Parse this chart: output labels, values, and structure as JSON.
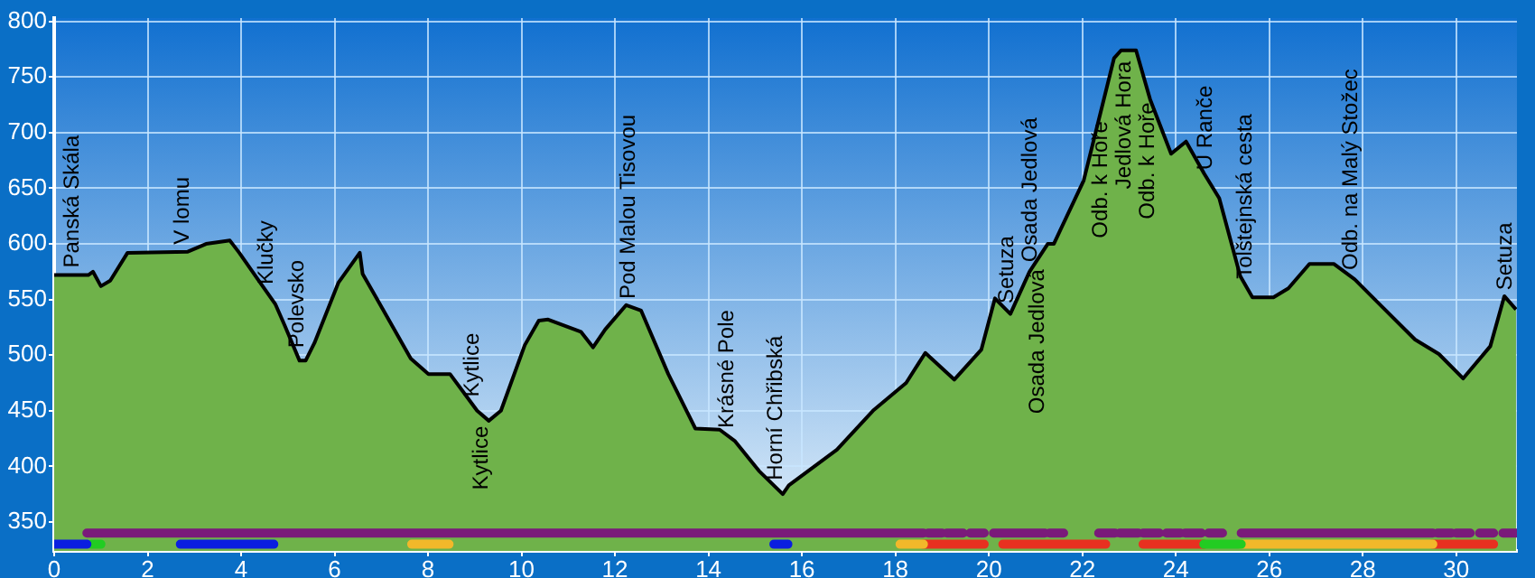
{
  "chart_data": {
    "type": "area",
    "x": [
      0,
      0.73,
      0.83,
      1.0,
      1.2,
      1.57,
      2.86,
      3.25,
      3.76,
      3.96,
      4.41,
      4.73,
      4.93,
      5.25,
      5.38,
      5.57,
      6.08,
      6.54,
      6.6,
      6.86,
      7.63,
      8.01,
      8.47,
      9.05,
      9.3,
      9.56,
      10.07,
      10.37,
      10.57,
      11.27,
      11.53,
      11.79,
      12.24,
      12.56,
      13.14,
      13.72,
      14.24,
      14.56,
      15.08,
      15.59,
      15.72,
      16.75,
      17.52,
      18.23,
      18.64,
      19.26,
      19.84,
      20.13,
      20.46,
      20.87,
      21.26,
      21.39,
      22.03,
      22.68,
      22.83,
      23.15,
      23.45,
      23.9,
      24.22,
      24.61,
      24.93,
      25.38,
      25.64,
      26.09,
      26.41,
      26.86,
      27.38,
      27.83,
      29.12,
      29.63,
      30.15,
      30.73,
      31.03,
      31.28
    ],
    "series": [
      {
        "color": "#6fb24a",
        "values": [
          572,
          572,
          575,
          562,
          567,
          592,
          593,
          600,
          603,
          592,
          565,
          546,
          527,
          495,
          495,
          511,
          565,
          592,
          573,
          554,
          497,
          483,
          483,
          450,
          441,
          450,
          509,
          531,
          532,
          521,
          507,
          523,
          545,
          540,
          483,
          434,
          433,
          423,
          396,
          375,
          383,
          415,
          450,
          475,
          502,
          478,
          505,
          551,
          537,
          575,
          600,
          600,
          657,
          767,
          774,
          774,
          730,
          681,
          692,
          663,
          641,
          571,
          552,
          552,
          560,
          582,
          582,
          568,
          514,
          501,
          479,
          508,
          553,
          541
        ]
      },
      {
        "type": "line",
        "color": "#7a1a7a",
        "x": [
          0.7,
          18.6,
          18.65,
          18.7,
          19.0,
          19.05,
          19.1,
          19.45,
          19.5,
          19.6,
          19.9,
          20.0,
          20.1,
          21.2,
          21.25,
          21.3,
          21.6,
          22.0,
          22.35,
          22.7,
          22.75,
          22.8,
          23.2,
          23.25,
          23.3,
          23.65,
          23.7,
          23.8,
          24.1,
          24.15,
          24.2,
          24.55,
          24.6,
          24.7,
          25.0,
          25.2,
          25.4,
          29.5,
          29.55,
          29.6,
          29.9,
          29.95,
          30.0,
          30.3,
          30.4,
          30.5,
          30.8,
          30.9,
          31.0,
          31.3
        ],
        "values": [
          340,
          340,
          null,
          340,
          340,
          null,
          340,
          340,
          null,
          340,
          340,
          null,
          340,
          340,
          null,
          340,
          340,
          null,
          340,
          340,
          null,
          340,
          340,
          null,
          340,
          340,
          null,
          340,
          340,
          null,
          340,
          340,
          null,
          340,
          340,
          null,
          340,
          340,
          null,
          340,
          340,
          null,
          340,
          340,
          null,
          340,
          340,
          null,
          340,
          340
        ]
      },
      {
        "type": "line",
        "color": "#0a1ee0",
        "x": [
          0,
          0.7,
          1.5,
          2.7,
          4.7,
          10,
          15.4,
          15.7
        ],
        "values": [
          330,
          330,
          null,
          330,
          330,
          null,
          330,
          330
        ]
      },
      {
        "type": "line",
        "color": "#22cc22",
        "x": [
          0.8,
          1.0,
          12,
          24.6,
          25.4
        ],
        "values": [
          330,
          330,
          null,
          330,
          330
        ]
      },
      {
        "type": "line",
        "color": "#f2b82a",
        "x": [
          7.65,
          8.45,
          13,
          18.1,
          18.6,
          22,
          25.4,
          29.5
        ],
        "values": [
          330,
          330,
          null,
          330,
          330,
          null,
          330,
          330
        ]
      },
      {
        "type": "line",
        "color": "#e83020",
        "x": [
          18.6,
          19.9,
          20.1,
          20.3,
          22.5,
          22.9,
          23.3,
          24.6,
          27,
          29.5,
          30.8
        ],
        "values": [
          330,
          330,
          null,
          330,
          330,
          null,
          330,
          330,
          null,
          330,
          330
        ]
      }
    ],
    "xlim": [
      0,
      31.3
    ],
    "xticks": [
      0,
      2,
      4,
      6,
      8,
      10,
      12,
      14,
      16,
      18,
      20,
      22,
      24,
      26,
      28,
      30
    ],
    "ylim": [
      324,
      803
    ],
    "yticks": [
      350,
      400,
      450,
      500,
      550,
      600,
      650,
      700,
      750,
      800
    ],
    "grid": true,
    "legend": false,
    "marker": "none",
    "line_style": "solid",
    "annotations": [
      {
        "text": "Panská Skála",
        "x": 0.4,
        "y": 572
      },
      {
        "text": "V lomu",
        "x": 2.75,
        "y": 593
      },
      {
        "text": "Klučky",
        "x": 4.55,
        "y": 557
      },
      {
        "text": "Polevsko",
        "x": 5.2,
        "y": 500
      },
      {
        "text": "Kytlice",
        "x": 8.95,
        "y": 456
      },
      {
        "text": "Kytlice",
        "x": 9.15,
        "y": 446
      },
      {
        "text": "Pod Malou Tisovou",
        "x": 12.3,
        "y": 544
      },
      {
        "text": "Krásné Pole",
        "x": 14.4,
        "y": 428
      },
      {
        "text": "Horní Chřibská",
        "x": 15.45,
        "y": 381
      },
      {
        "text": "Setuza",
        "x": 20.4,
        "y": 540
      },
      {
        "text": "Osada Jedlová",
        "x": 20.9,
        "y": 577
      },
      {
        "text": "Osada Jedlová",
        "x": 21.05,
        "y": 587
      },
      {
        "text": "Odb. k Hoře",
        "x": 22.4,
        "y": 720
      },
      {
        "text": "Jedlová Hora",
        "x": 22.9,
        "y": 774
      },
      {
        "text": "Odb. k Hoře",
        "x": 23.4,
        "y": 737
      },
      {
        "text": "U Ranče",
        "x": 24.65,
        "y": 660
      },
      {
        "text": "Tolštejnská cesta",
        "x": 25.5,
        "y": 562
      },
      {
        "text": "Odb. na Malý Stožec",
        "x": 27.75,
        "y": 570
      },
      {
        "text": "Setuza",
        "x": 31.05,
        "y": 552
      }
    ]
  }
}
